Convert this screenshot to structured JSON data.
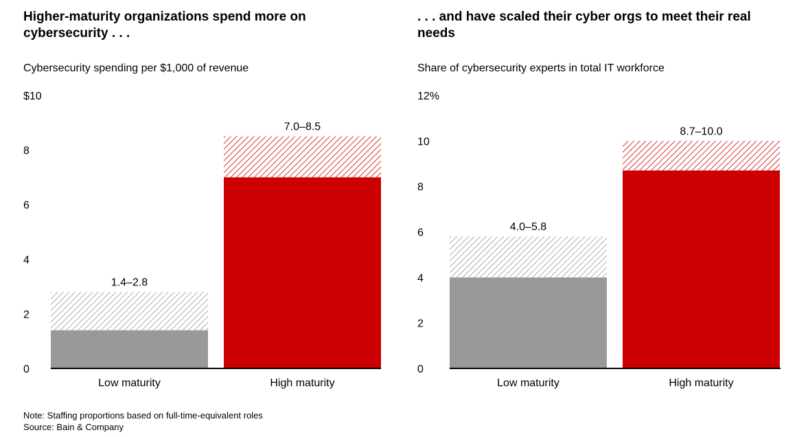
{
  "chart_data": [
    {
      "type": "bar",
      "title": "Higher-maturity organizations spend more on cybersecurity . . .",
      "subtitle": "Cybersecurity spending per $1,000 of revenue",
      "categories": [
        "Low maturity",
        "High maturity"
      ],
      "series": [
        {
          "name": "",
          "values": [
            1.4,
            7.0
          ],
          "colors": [
            "#999999",
            "#cc0000"
          ],
          "fill": "solid"
        },
        {
          "name": "",
          "values": [
            1.4,
            1.5
          ],
          "colors": [
            "#999999",
            "#cc0000"
          ],
          "fill": "hatched"
        }
      ],
      "range_low": [
        1.4,
        7.0
      ],
      "range_high": [
        2.8,
        8.5
      ],
      "data_labels": [
        "1.4–2.8",
        "7.0–8.5"
      ],
      "ylim": [
        0,
        10
      ],
      "y_ticks": [
        0,
        2,
        4,
        6,
        8,
        10
      ],
      "y_tick_labels": [
        "0",
        "2",
        "4",
        "6",
        "8",
        "$10"
      ],
      "grid": false
    },
    {
      "type": "bar",
      "title": ". . . and have scaled their cyber orgs to meet their real needs",
      "subtitle": "Share of cybersecurity experts in total IT workforce",
      "categories": [
        "Low maturity",
        "High maturity"
      ],
      "series": [
        {
          "name": "",
          "values": [
            4.0,
            8.7
          ],
          "colors": [
            "#999999",
            "#cc0000"
          ],
          "fill": "solid"
        },
        {
          "name": "",
          "values": [
            1.8,
            1.3
          ],
          "colors": [
            "#999999",
            "#cc0000"
          ],
          "fill": "hatched"
        }
      ],
      "range_low": [
        4.0,
        8.7
      ],
      "range_high": [
        5.8,
        10.0
      ],
      "data_labels": [
        "4.0–5.8",
        "8.7–10.0"
      ],
      "ylim": [
        0,
        12
      ],
      "y_ticks": [
        0,
        2,
        4,
        6,
        8,
        10,
        12
      ],
      "y_tick_labels": [
        "0",
        "2",
        "4",
        "6",
        "8",
        "10",
        "12%"
      ],
      "grid": false
    }
  ],
  "footer": {
    "note": "Note: Staffing proportions based on full-time-equivalent roles",
    "source": "Source: Bain & Company"
  }
}
